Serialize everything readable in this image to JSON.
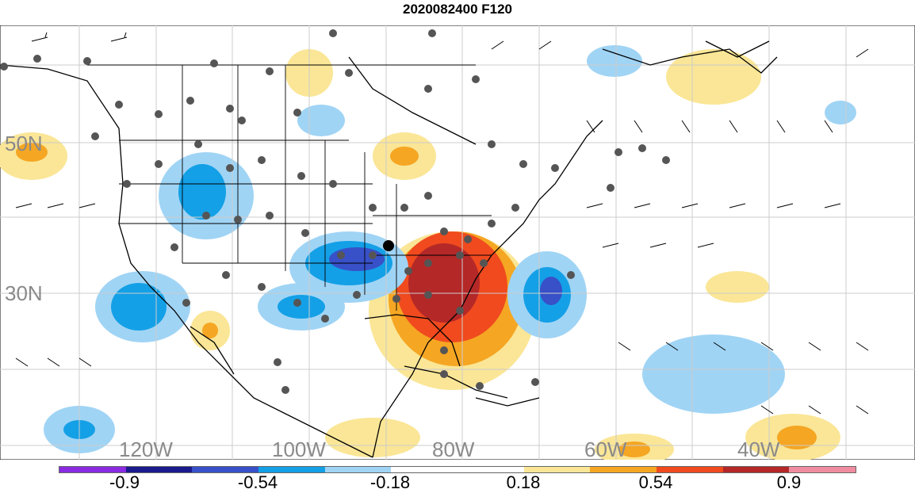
{
  "title": "2020082400 F120",
  "lat_labels": [
    "50N",
    "30N"
  ],
  "lon_labels": [
    "120W",
    "100W",
    "80W",
    "60W",
    "40W"
  ],
  "colorbar": {
    "colors": [
      "#8a2be2",
      "#1a1a8c",
      "#3850c8",
      "#14a0e6",
      "#a0d4f5",
      "#ffffff",
      "#ffffff",
      "#fae696",
      "#f5a623",
      "#f04a1e",
      "#b42828",
      "#f08ca0"
    ],
    "labels": [
      "-0.9",
      "-0.54",
      "-0.18",
      "0.18",
      "0.54",
      "0.9"
    ]
  },
  "colors": {
    "strong_pos": "#b42828",
    "pos": "#f04a1e",
    "mild_pos": "#f5a623",
    "weak_pos": "#fae696",
    "weak_neg": "#a0d4f5",
    "neg": "#14a0e6",
    "strong_neg": "#3850c8",
    "station": "#555555"
  }
}
